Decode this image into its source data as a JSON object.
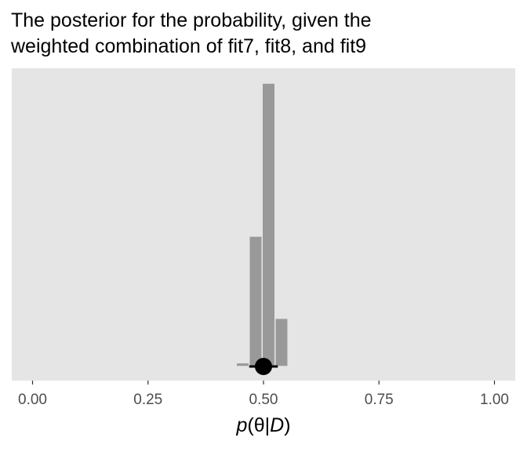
{
  "chart_data": {
    "type": "bar",
    "title_lines": [
      "The posterior for the probability, given the",
      "weighted combination of fit7, fit8, and fit9"
    ],
    "xlabel": {
      "italic_start": "p",
      "middle": "(θ|",
      "italic_end": "D",
      "close": ")"
    },
    "ylabel": "",
    "xlim": [
      -0.045,
      1.045
    ],
    "x_ticks": [
      0,
      0.25,
      0.5,
      0.75,
      1
    ],
    "x_tick_labels": [
      "0.00",
      "0.25",
      "0.50",
      "0.75",
      "1.00"
    ],
    "bin_width": 0.028,
    "bins": [
      {
        "x0": 0.441,
        "x1": 0.469,
        "count": 0.013
      },
      {
        "x0": 0.469,
        "x1": 0.497,
        "count": 0.46
      },
      {
        "x0": 0.497,
        "x1": 0.525,
        "count": 1.0
      },
      {
        "x0": 0.525,
        "x1": 0.553,
        "count": 0.17
      }
    ],
    "ylim": [
      0,
      1.05
    ],
    "point_estimate": {
      "x": 0.5,
      "interval": [
        0.469,
        0.531
      ]
    },
    "colors": {
      "panel": "#e5e5e5",
      "bar_fill": "#999999",
      "bar_border": "#e5e5e5",
      "point": "#000000",
      "tick": "#333333"
    },
    "grid": false,
    "legend": "none"
  }
}
